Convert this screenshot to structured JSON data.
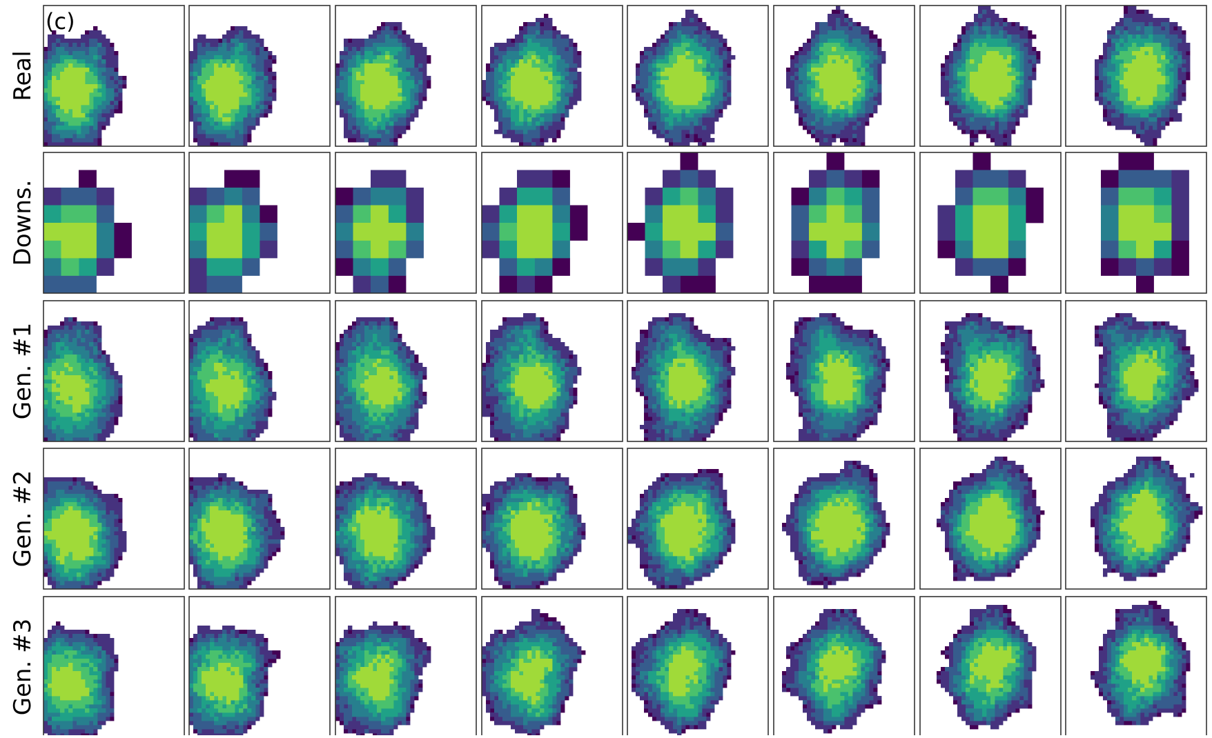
{
  "panel_label": "(c)",
  "row_labels": [
    "Real",
    "Downs.",
    "Gen. #1",
    "Gen. #2",
    "Gen. #3"
  ]
}
